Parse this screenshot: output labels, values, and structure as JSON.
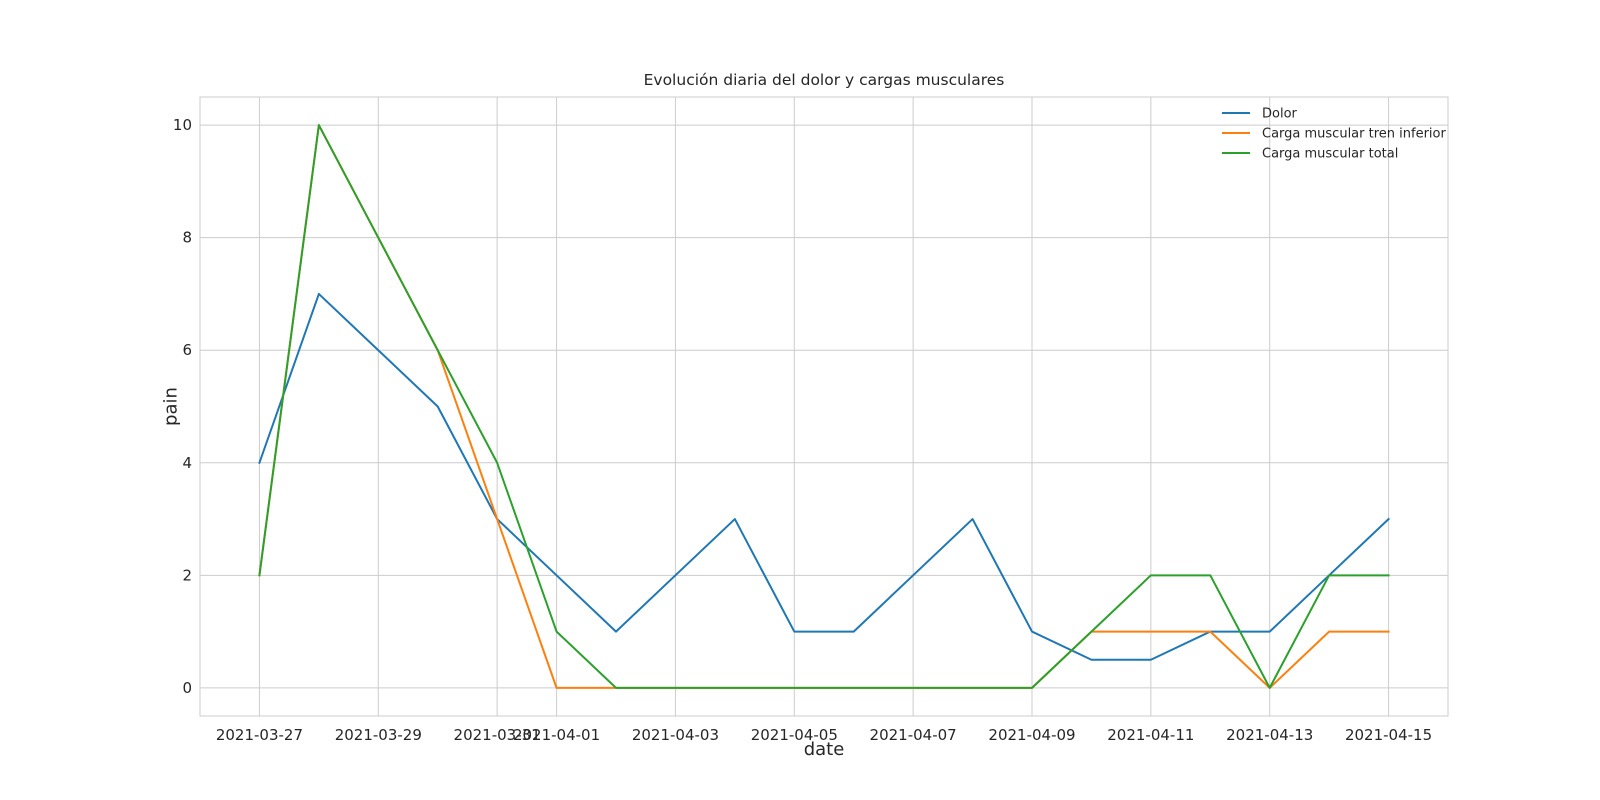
{
  "chart_data": {
    "type": "line",
    "title": "Evolución diaria del dolor y cargas musculares",
    "xlabel": "date",
    "ylabel": "pain",
    "x": [
      "2021-03-27",
      "2021-03-28",
      "2021-03-29",
      "2021-03-30",
      "2021-03-31",
      "2021-04-01",
      "2021-04-02",
      "2021-04-03",
      "2021-04-04",
      "2021-04-05",
      "2021-04-06",
      "2021-04-07",
      "2021-04-08",
      "2021-04-09",
      "2021-04-10",
      "2021-04-11",
      "2021-04-12",
      "2021-04-13",
      "2021-04-14",
      "2021-04-15"
    ],
    "x_ticks": [
      "2021-03-27",
      "2021-03-29",
      "2021-03-31",
      "2021-04-01",
      "2021-04-03",
      "2021-04-05",
      "2021-04-07",
      "2021-04-09",
      "2021-04-11",
      "2021-04-13",
      "2021-04-15"
    ],
    "y_ticks": [
      0,
      2,
      4,
      6,
      8,
      10
    ],
    "xlim": [
      "2021-03-26",
      "2021-04-16"
    ],
    "ylim": [
      -0.5,
      10.5
    ],
    "grid": true,
    "legend_position": "top-right",
    "series": [
      {
        "name": "Dolor",
        "color": "#1f77b4",
        "values": [
          4,
          7,
          6,
          5,
          3,
          2,
          1,
          2,
          3,
          1,
          1,
          2,
          3,
          1,
          0.5,
          0.5,
          1,
          1,
          2,
          3
        ]
      },
      {
        "name": "Carga muscular tren inferior",
        "color": "#ff7f0e",
        "values": [
          2,
          10,
          8,
          6,
          3,
          0,
          0,
          0,
          0,
          0,
          0,
          0,
          0,
          0,
          1,
          1,
          1,
          0,
          1,
          1
        ]
      },
      {
        "name": "Carga muscular total",
        "color": "#2ca02c",
        "values": [
          2,
          10,
          8,
          6,
          4,
          1,
          0,
          0,
          0,
          0,
          0,
          0,
          0,
          0,
          1,
          2,
          2,
          0,
          2,
          2
        ]
      }
    ]
  }
}
